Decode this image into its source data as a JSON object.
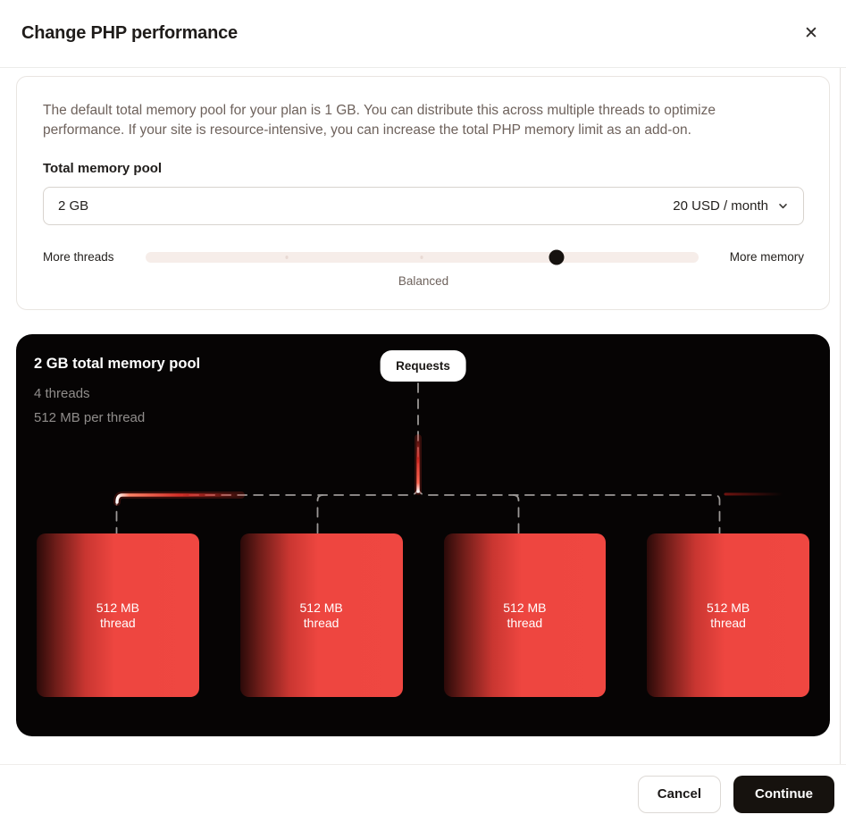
{
  "modal": {
    "title": "Change PHP performance",
    "close_icon": "✕"
  },
  "config": {
    "description": "The default total memory pool for your plan is 1 GB. You can distribute this across multiple threads to optimize performance. If your site is resource-intensive, you can increase the total PHP memory limit as an add-on.",
    "memory_label": "Total memory pool",
    "select": {
      "value": "2 GB",
      "price": "20 USD / month",
      "chevron_icon": "chevron-down"
    },
    "slider": {
      "left_label": "More threads",
      "right_label": "More memory",
      "center_label": "Balanced",
      "value_percent": 74.4,
      "tick_positions_percent": [
        25.6,
        50
      ]
    }
  },
  "visualization": {
    "pool_title": "2 GB total memory pool",
    "threads_line": "4 threads",
    "per_thread_line": "512 MB per thread",
    "requests_badge": "Requests",
    "threads": [
      {
        "size": "512 MB",
        "label": "thread"
      },
      {
        "size": "512 MB",
        "label": "thread"
      },
      {
        "size": "512 MB",
        "label": "thread"
      },
      {
        "size": "512 MB",
        "label": "thread"
      }
    ]
  },
  "footer": {
    "cancel_label": "Cancel",
    "continue_label": "Continue"
  },
  "colors": {
    "accent_red": "#EE4540",
    "panel_bg": "#060404",
    "slider_track": "#F6EDE9",
    "slider_thumb": "#16120F",
    "continue_bg": "#16120E",
    "badge_bg": "#FFFFFF",
    "dashed_line": "#9A9795"
  }
}
